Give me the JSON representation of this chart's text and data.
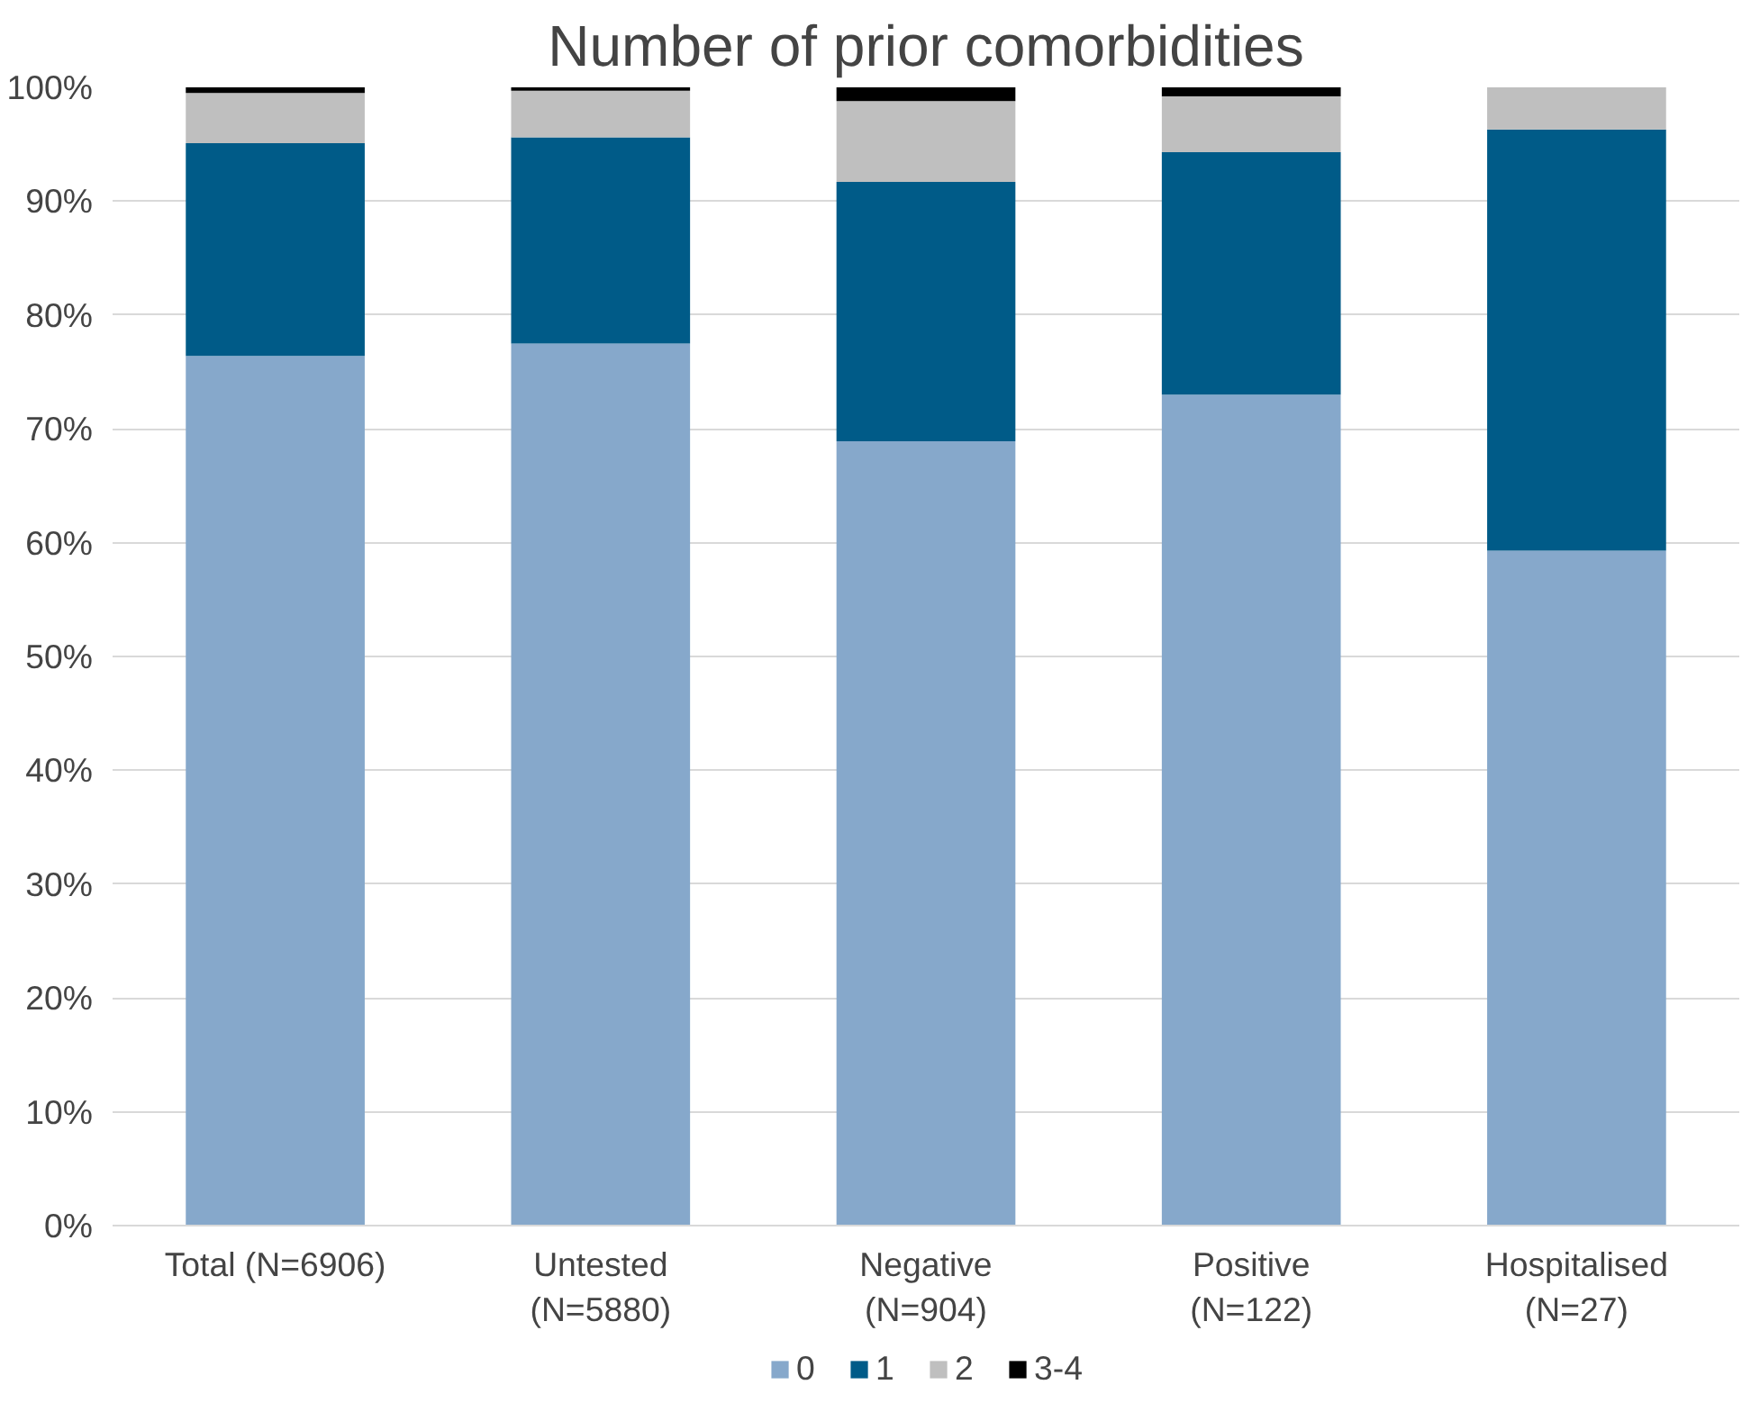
{
  "chart_data": {
    "type": "bar",
    "title": "Number of prior comorbidities",
    "stacked": true,
    "categories": [
      "Total (N=6906)",
      "Untested\n(N=5880)",
      "Negative\n(N=904)",
      "Positive\n(N=122)",
      "Hospitalised\n(N=27)"
    ],
    "series": [
      {
        "name": "0",
        "color": "#86a8cb",
        "values": [
          76.4,
          77.5,
          68.9,
          73.0,
          59.3
        ]
      },
      {
        "name": "1",
        "color": "#005b88",
        "values": [
          18.7,
          18.1,
          22.8,
          21.3,
          37.0
        ]
      },
      {
        "name": "2",
        "color": "#bfbfbf",
        "values": [
          4.4,
          4.1,
          7.1,
          4.9,
          3.7
        ]
      },
      {
        "name": "3-4",
        "color": "#000000",
        "values": [
          0.5,
          0.3,
          1.2,
          0.8,
          0
        ]
      }
    ],
    "ylim": [
      0,
      100
    ],
    "yticks": [
      {
        "value": 0,
        "label": "0%"
      },
      {
        "value": 10,
        "label": "10%"
      },
      {
        "value": 20,
        "label": "20%"
      },
      {
        "value": 30,
        "label": "30%"
      },
      {
        "value": 40,
        "label": "40%"
      },
      {
        "value": 50,
        "label": "50%"
      },
      {
        "value": 60,
        "label": "60%"
      },
      {
        "value": 70,
        "label": "70%"
      },
      {
        "value": 80,
        "label": "80%"
      },
      {
        "value": 90,
        "label": "90%"
      },
      {
        "value": 100,
        "label": "100%"
      }
    ],
    "grid": "y",
    "legend": "bottom"
  }
}
